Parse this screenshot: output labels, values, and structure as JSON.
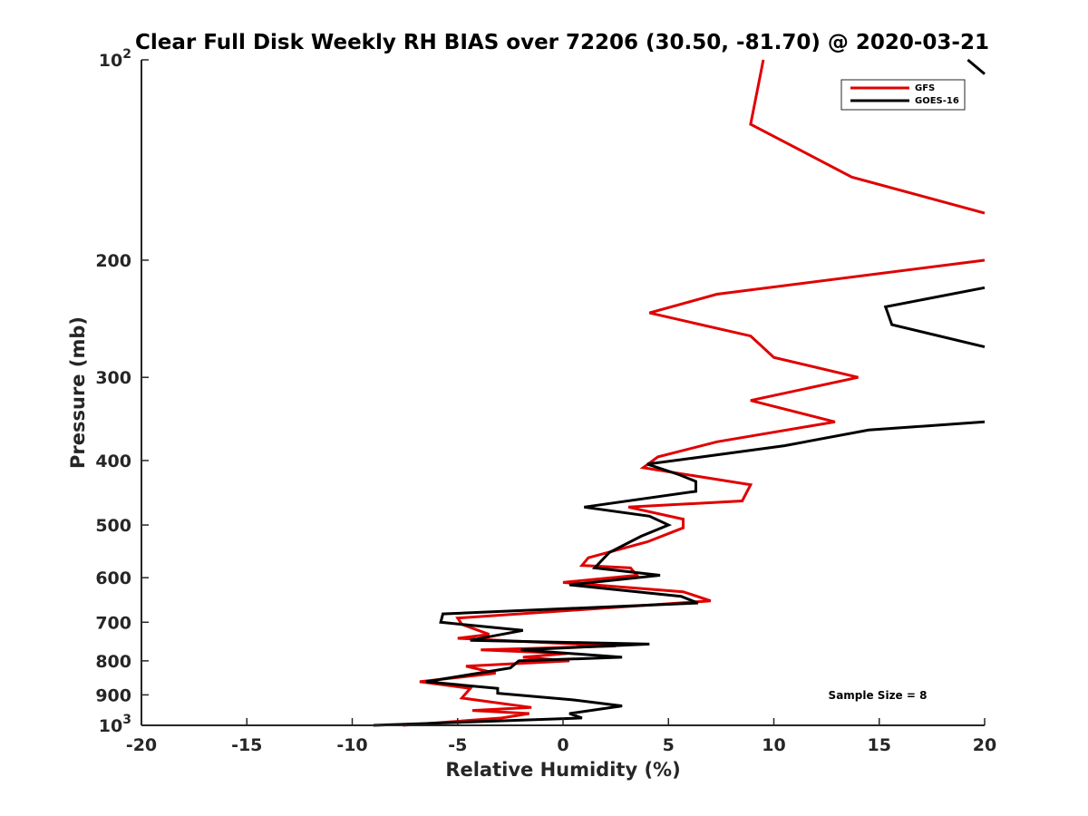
{
  "chart_data": {
    "type": "line",
    "title": "Clear Full Disk Weekly RH BIAS over 72206 (30.50, -81.70) @ 2020-03-21",
    "xlabel": "Relative Humidity (%)",
    "ylabel": "Pressure (mb)",
    "xlim": [
      -20,
      20
    ],
    "ylim": [
      100,
      1000
    ],
    "y_scale": "log",
    "y_reversed": true,
    "x_ticks": [
      "-20",
      "-15",
      "-10",
      "-5",
      "0",
      "5",
      "10",
      "15",
      "20"
    ],
    "y_ticks": [
      {
        "value": 100,
        "base": "10",
        "exp": "2"
      },
      {
        "value": 200,
        "label": "200"
      },
      {
        "value": 300,
        "label": "300"
      },
      {
        "value": 400,
        "label": "400"
      },
      {
        "value": 500,
        "label": "500"
      },
      {
        "value": 600,
        "label": "600"
      },
      {
        "value": 700,
        "label": "700"
      },
      {
        "value": 800,
        "label": "800"
      },
      {
        "value": 900,
        "label": "900"
      },
      {
        "value": 1000,
        "base": "10",
        "exp": "3"
      }
    ],
    "grid": false,
    "legend_position": "top-right",
    "annotation": "Sample Size = 8",
    "series": [
      {
        "name": "GFS",
        "color": "#e00000",
        "points": [
          [
            9.5,
            100
          ],
          [
            8.9,
            125
          ],
          [
            13.7,
            150
          ],
          [
            20.0,
            170
          ],
          [
            null,
            null
          ],
          [
            20.0,
            200
          ],
          [
            7.3,
            225
          ],
          [
            4.1,
            240
          ],
          [
            8.9,
            260
          ],
          [
            10.0,
            280
          ],
          [
            14.0,
            300
          ],
          [
            8.9,
            325
          ],
          [
            12.9,
            350
          ],
          [
            7.3,
            375
          ],
          [
            4.5,
            395
          ],
          [
            3.8,
            410
          ],
          [
            8.9,
            435
          ],
          [
            8.5,
            460
          ],
          [
            3.1,
            470
          ],
          [
            5.7,
            490
          ],
          [
            5.7,
            505
          ],
          [
            4.0,
            530
          ],
          [
            1.2,
            560
          ],
          [
            0.9,
            575
          ],
          [
            3.2,
            580
          ],
          [
            3.5,
            595
          ],
          [
            0.0,
            610
          ],
          [
            5.7,
            630
          ],
          [
            7.0,
            650
          ],
          [
            -5.0,
            690
          ],
          [
            -4.8,
            705
          ],
          [
            -3.5,
            730
          ],
          [
            -5.0,
            740
          ],
          [
            2.5,
            760
          ],
          [
            -3.9,
            770
          ],
          [
            0.2,
            780
          ],
          [
            -1.9,
            790
          ],
          [
            0.3,
            800
          ],
          [
            -4.6,
            815
          ],
          [
            -3.2,
            835
          ],
          [
            -6.8,
            860
          ],
          [
            -4.4,
            880
          ],
          [
            -4.8,
            910
          ],
          [
            -1.5,
            940
          ],
          [
            -4.3,
            950
          ],
          [
            -1.6,
            960
          ],
          [
            -2.9,
            975
          ],
          [
            -7.6,
            1000
          ]
        ]
      },
      {
        "name": "GOES-16",
        "color": "#000000",
        "points": [
          [
            19.2,
            100
          ],
          [
            20.0,
            105
          ],
          [
            null,
            null
          ],
          [
            20.0,
            220
          ],
          [
            15.3,
            235
          ],
          [
            15.6,
            250
          ],
          [
            20.0,
            270
          ],
          [
            null,
            null
          ],
          [
            20.0,
            350
          ],
          [
            14.5,
            360
          ],
          [
            10.5,
            380
          ],
          [
            6.6,
            395
          ],
          [
            4.0,
            405
          ],
          [
            5.5,
            420
          ],
          [
            6.3,
            430
          ],
          [
            6.3,
            445
          ],
          [
            1.0,
            470
          ],
          [
            4.1,
            485
          ],
          [
            5.0,
            500
          ],
          [
            3.7,
            520
          ],
          [
            2.2,
            550
          ],
          [
            1.5,
            580
          ],
          [
            4.6,
            595
          ],
          [
            0.3,
            615
          ],
          [
            5.6,
            640
          ],
          [
            6.4,
            655
          ],
          [
            -5.7,
            680
          ],
          [
            -5.8,
            700
          ],
          [
            -1.9,
            720
          ],
          [
            -4.4,
            745
          ],
          [
            4.1,
            755
          ],
          [
            -2.0,
            770
          ],
          [
            2.8,
            790
          ],
          [
            -2.1,
            800
          ],
          [
            -2.5,
            820
          ],
          [
            -6.5,
            860
          ],
          [
            -3.1,
            880
          ],
          [
            -3.1,
            895
          ],
          [
            0.4,
            915
          ],
          [
            2.8,
            935
          ],
          [
            0.3,
            960
          ],
          [
            0.9,
            975
          ],
          [
            -9.0,
            1000
          ]
        ]
      }
    ]
  }
}
